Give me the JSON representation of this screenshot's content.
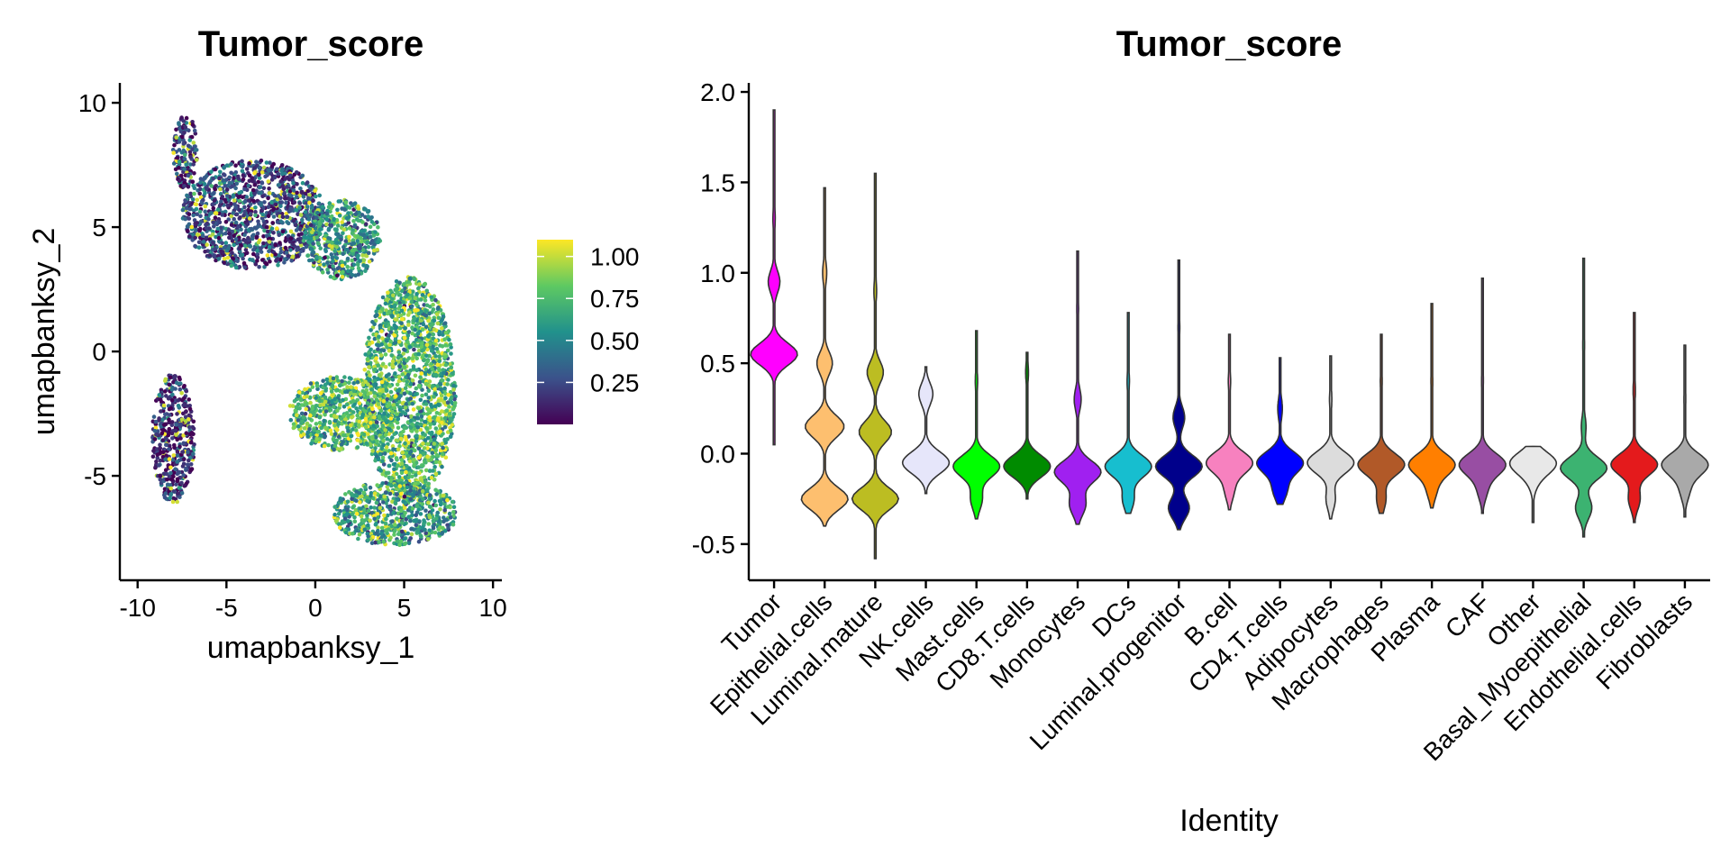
{
  "chart_data": [
    {
      "type": "scatter",
      "title": "Tumor_score",
      "xlabel": "umapbanksy_1",
      "ylabel": "umapbanksy_2",
      "xlim": [
        -11,
        10.5
      ],
      "ylim": [
        -9.2,
        10.8
      ],
      "xticks": [
        -10,
        -5,
        0,
        5,
        10
      ],
      "yticks": [
        10,
        5,
        0,
        -5
      ],
      "xtick_labels": [
        "-10",
        "-5",
        "0",
        "5",
        "10"
      ],
      "ytick_labels": [
        "10",
        "5",
        "0",
        "-5"
      ],
      "color_scale": "viridis",
      "colorbar": {
        "min": 0.0,
        "max": 1.1,
        "ticks": [
          0.25,
          0.5,
          0.75,
          1.0
        ],
        "tick_labels": [
          "0.25",
          "0.50",
          "0.75",
          "1.00"
        ]
      },
      "regions": [
        {
          "name": "upper arc, low score",
          "cx": -3.5,
          "cy": 5.5,
          "rx": 4.0,
          "ry": 2.2,
          "value_mean": 0.25
        },
        {
          "name": "upper arc right",
          "cx": 1.5,
          "cy": 4.5,
          "rx": 2.2,
          "ry": 1.6,
          "value_mean": 0.55
        },
        {
          "name": "right lobe, high score",
          "cx": 5.3,
          "cy": -1.5,
          "rx": 2.6,
          "ry": 4.5,
          "value_mean": 0.7
        },
        {
          "name": "central band",
          "cx": 1.5,
          "cy": -2.5,
          "rx": 3.0,
          "ry": 1.5,
          "value_mean": 0.72
        },
        {
          "name": "bottom lobe",
          "cx": 4.5,
          "cy": -6.5,
          "rx": 3.5,
          "ry": 1.3,
          "value_mean": 0.6
        },
        {
          "name": "left stem",
          "cx": -8.0,
          "cy": -3.5,
          "rx": 1.2,
          "ry": 2.6,
          "value_mean": 0.15
        },
        {
          "name": "top spike",
          "cx": -7.3,
          "cy": 8.0,
          "rx": 0.7,
          "ry": 1.5,
          "value_mean": 0.2
        }
      ]
    },
    {
      "type": "violin",
      "title": "Tumor_score",
      "xlabel": "Identity",
      "ylabel": "",
      "ylim": [
        -0.7,
        2.05
      ],
      "yticks": [
        -0.5,
        0.0,
        0.5,
        1.0,
        1.5,
        2.0
      ],
      "ytick_labels": [
        "-0.5",
        "0.0",
        "0.5",
        "1.0",
        "1.5",
        "2.0"
      ],
      "categories": [
        "Tumor",
        "Epithelial.cells",
        "Luminal.mature",
        "NK.cells",
        "Mast.cells",
        "CD8.T.cells",
        "Monocytes",
        "DCs",
        "Luminal.progenitor",
        "B.cell",
        "CD4.T.cells",
        "Adipocytes",
        "Macrophages",
        "Plasma",
        "CAF",
        "Other",
        "Basal_Myoepithelial",
        "Endothelial.cells",
        "Fibroblasts"
      ],
      "colors": [
        "#FF00FF",
        "#FDBF6F",
        "#BCBD22",
        "#E6E6FA",
        "#00FF00",
        "#008B00",
        "#A020F0",
        "#17BECF",
        "#00008B",
        "#F781BF",
        "#0000FF",
        "#DCDCDC",
        "#B15928",
        "#FF7F00",
        "#984EA3",
        "#E8E8E8",
        "#3CB371",
        "#E41A1C",
        "#A9A9A9"
      ],
      "series": [
        {
          "min": 0.05,
          "max": 1.9,
          "modes": [
            [
              0.55,
              1.0
            ],
            [
              0.95,
              0.25
            ],
            [
              1.3,
              0.05
            ]
          ]
        },
        {
          "min": -0.4,
          "max": 1.47,
          "modes": [
            [
              -0.25,
              0.9
            ],
            [
              0.15,
              0.75
            ],
            [
              0.5,
              0.3
            ],
            [
              1.0,
              0.08
            ]
          ]
        },
        {
          "min": -0.58,
          "max": 1.55,
          "modes": [
            [
              -0.25,
              1.0
            ],
            [
              0.12,
              0.7
            ],
            [
              0.45,
              0.35
            ],
            [
              0.9,
              0.06
            ]
          ]
        },
        {
          "min": -0.22,
          "max": 0.48,
          "modes": [
            [
              -0.05,
              1.0
            ],
            [
              0.33,
              0.3
            ]
          ]
        },
        {
          "min": -0.36,
          "max": 0.68,
          "modes": [
            [
              -0.07,
              1.0
            ],
            [
              -0.25,
              0.25
            ],
            [
              0.4,
              0.05
            ]
          ]
        },
        {
          "min": -0.25,
          "max": 0.56,
          "modes": [
            [
              -0.07,
              1.0
            ],
            [
              0.45,
              0.06
            ]
          ]
        },
        {
          "min": -0.39,
          "max": 1.12,
          "modes": [
            [
              -0.1,
              1.0
            ],
            [
              -0.28,
              0.35
            ],
            [
              0.3,
              0.15
            ],
            [
              0.8,
              0.04
            ]
          ]
        },
        {
          "min": -0.33,
          "max": 0.78,
          "modes": [
            [
              -0.07,
              1.0
            ],
            [
              -0.25,
              0.25
            ],
            [
              0.4,
              0.05
            ]
          ]
        },
        {
          "min": -0.42,
          "max": 1.07,
          "modes": [
            [
              -0.07,
              1.0
            ],
            [
              -0.3,
              0.45
            ],
            [
              0.2,
              0.25
            ],
            [
              0.7,
              0.04
            ]
          ]
        },
        {
          "min": -0.31,
          "max": 0.66,
          "modes": [
            [
              -0.05,
              1.0
            ],
            [
              -0.2,
              0.2
            ],
            [
              0.4,
              0.05
            ]
          ]
        },
        {
          "min": -0.28,
          "max": 0.53,
          "modes": [
            [
              -0.05,
              1.0
            ],
            [
              -0.2,
              0.3
            ],
            [
              0.25,
              0.1
            ]
          ]
        },
        {
          "min": -0.36,
          "max": 0.54,
          "modes": [
            [
              -0.05,
              1.0
            ],
            [
              -0.25,
              0.2
            ],
            [
              0.3,
              0.05
            ]
          ]
        },
        {
          "min": -0.33,
          "max": 0.66,
          "modes": [
            [
              -0.06,
              1.0
            ],
            [
              -0.25,
              0.2
            ],
            [
              0.4,
              0.04
            ]
          ]
        },
        {
          "min": -0.3,
          "max": 0.83,
          "modes": [
            [
              -0.06,
              1.0
            ],
            [
              -0.2,
              0.2
            ],
            [
              0.4,
              0.04
            ]
          ]
        },
        {
          "min": -0.33,
          "max": 0.97,
          "modes": [
            [
              -0.06,
              1.0
            ],
            [
              -0.2,
              0.2
            ],
            [
              0.4,
              0.04
            ]
          ]
        },
        {
          "min": -0.38,
          "max": 0.04,
          "modes": [
            [
              -0.05,
              1.0
            ],
            [
              -0.15,
              0.15
            ]
          ]
        },
        {
          "min": -0.46,
          "max": 1.08,
          "modes": [
            [
              -0.08,
              1.0
            ],
            [
              -0.3,
              0.35
            ],
            [
              0.15,
              0.1
            ],
            [
              0.6,
              0.04
            ]
          ]
        },
        {
          "min": -0.38,
          "max": 0.78,
          "modes": [
            [
              -0.06,
              1.0
            ],
            [
              -0.25,
              0.25
            ],
            [
              0.35,
              0.05
            ]
          ]
        },
        {
          "min": -0.35,
          "max": 0.6,
          "modes": [
            [
              -0.06,
              1.0
            ],
            [
              -0.2,
              0.2
            ],
            [
              0.3,
              0.04
            ]
          ]
        }
      ]
    }
  ]
}
